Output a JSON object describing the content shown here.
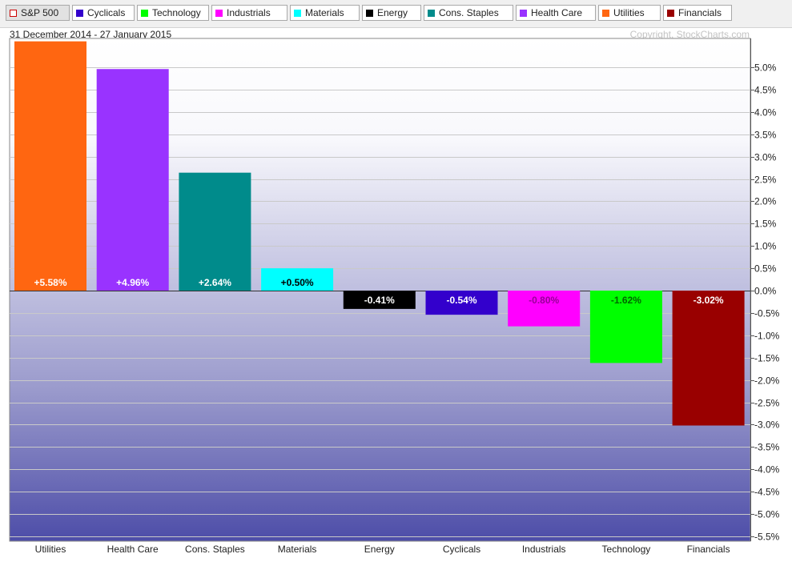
{
  "legend": [
    {
      "label": "S&P 500",
      "color": "#ffffff",
      "border": "#cc0000",
      "selected": true
    },
    {
      "label": "Cyclicals",
      "color": "#3300cc"
    },
    {
      "label": "Technology",
      "color": "#00ff00"
    },
    {
      "label": "Industrials",
      "color": "#ff00ff"
    },
    {
      "label": "Materials",
      "color": "#00ffff"
    },
    {
      "label": "Energy",
      "color": "#000000"
    },
    {
      "label": "Cons. Staples",
      "color": "#008b8b"
    },
    {
      "label": "Health Care",
      "color": "#9933ff"
    },
    {
      "label": "Utilities",
      "color": "#ff6611"
    },
    {
      "label": "Financials",
      "color": "#990000"
    }
  ],
  "header": {
    "date_range": "31 December 2014 - 27 January 2015",
    "copyright": "Copyright, StockCharts.com"
  },
  "chart_data": {
    "type": "bar",
    "categories": [
      "Utilities",
      "Health Care",
      "Cons. Staples",
      "Materials",
      "Energy",
      "Cyclicals",
      "Industrials",
      "Technology",
      "Financials"
    ],
    "values": [
      5.58,
      4.96,
      2.64,
      0.5,
      -0.41,
      -0.54,
      -0.8,
      -1.62,
      -3.02
    ],
    "data_labels": [
      "+5.58%",
      "+4.96%",
      "+2.64%",
      "+0.50%",
      "-0.41%",
      "-0.54%",
      "-0.80%",
      "-1.62%",
      "-3.02%"
    ],
    "colors": [
      "#ff6611",
      "#9933ff",
      "#008b8b",
      "#00ffff",
      "#000000",
      "#3300cc",
      "#ff00ff",
      "#00ff00",
      "#990000"
    ],
    "label_colors": [
      "#ffffff",
      "#ffffff",
      "#ffffff",
      "#000000",
      "#ffffff",
      "#ffffff",
      "#990099",
      "#006600",
      "#ffffff"
    ],
    "y_ticks": [
      "5.0%",
      "4.5%",
      "4.0%",
      "3.5%",
      "3.0%",
      "2.5%",
      "2.0%",
      "1.5%",
      "1.0%",
      "0.5%",
      "0.0%",
      "-0.5%",
      "-1.0%",
      "-1.5%",
      "-2.0%",
      "-2.5%",
      "-3.0%",
      "-3.5%",
      "-4.0%",
      "-4.5%",
      "-5.0%",
      "-5.5%"
    ],
    "ylim": [
      -5.6,
      5.6
    ],
    "grid": true,
    "y_axis_position": "right"
  }
}
